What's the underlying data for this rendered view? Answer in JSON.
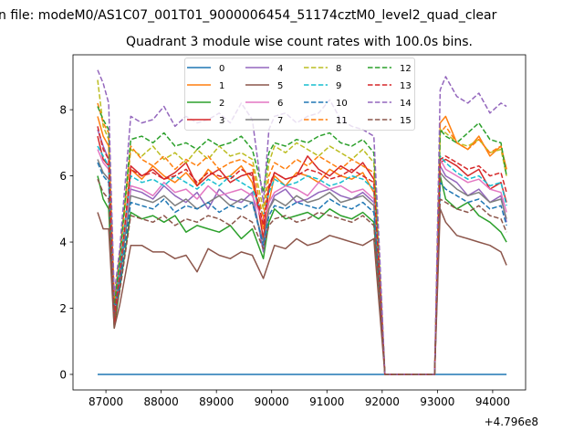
{
  "chart_data": {
    "type": "line",
    "suptitle": "n file: modeM0/AS1C07_001T01_9000006454_51174cztM0_level2_quad_clear",
    "title": "Quadrant 3 module wise count rates with 100.0s bins.",
    "xlabel": "",
    "ylabel": "",
    "x_offset_label": "+4.796e8",
    "xlim": [
      86404,
      94596
    ],
    "ylim": [
      -0.47,
      9.66
    ],
    "xticks": [
      87000,
      88000,
      89000,
      90000,
      91000,
      92000,
      93000,
      94000
    ],
    "yticks": [
      0,
      2,
      4,
      6,
      8
    ],
    "legend_placement": "top-center",
    "x": [
      86850,
      86950,
      87050,
      87150,
      87250,
      87450,
      87650,
      87850,
      88050,
      88250,
      88450,
      88650,
      88850,
      89050,
      89250,
      89450,
      89650,
      89850,
      89950,
      90050,
      90250,
      90450,
      90650,
      90850,
      91050,
      91250,
      91450,
      91650,
      91850,
      91950,
      92050,
      92950,
      93050,
      93150,
      93350,
      93550,
      93750,
      93950,
      94150,
      94250
    ],
    "series": [
      {
        "name": "0",
        "color": "#1f77b4",
        "dashed": false,
        "values": [
          0,
          0,
          0,
          0,
          0,
          0,
          0,
          0,
          0,
          0,
          0,
          0,
          0,
          0,
          0,
          0,
          0,
          0,
          0,
          0,
          0,
          0,
          0,
          0,
          0,
          0,
          0,
          0,
          0,
          0,
          0,
          0,
          0,
          0,
          0,
          0,
          0,
          0,
          0,
          0
        ]
      },
      {
        "name": "1",
        "color": "#ff7f0e",
        "dashed": false,
        "values": [
          7.8,
          7.2,
          6.9,
          1.6,
          3.0,
          6.2,
          5.9,
          6.3,
          6.0,
          5.8,
          6.1,
          5.7,
          6.2,
          5.9,
          6.0,
          6.3,
          5.8,
          4.4,
          5.2,
          6.0,
          5.7,
          6.1,
          6.0,
          5.8,
          6.2,
          6.0,
          5.9,
          6.1,
          5.5,
          3.0,
          0,
          0,
          7.6,
          7.8,
          7.0,
          6.8,
          7.2,
          6.6,
          6.9,
          6.2
        ]
      },
      {
        "name": "2",
        "color": "#2ca02c",
        "dashed": false,
        "values": [
          6.0,
          5.3,
          5.0,
          1.4,
          2.6,
          4.9,
          4.7,
          4.8,
          4.6,
          4.8,
          4.3,
          4.5,
          4.4,
          4.3,
          4.5,
          4.1,
          4.4,
          3.5,
          4.6,
          5.0,
          4.7,
          4.8,
          4.9,
          4.7,
          5.0,
          4.8,
          4.7,
          4.9,
          4.6,
          2.5,
          0,
          0,
          6.0,
          5.3,
          5.0,
          5.2,
          4.8,
          4.6,
          4.3,
          4.0
        ]
      },
      {
        "name": "3",
        "color": "#d62728",
        "dashed": false,
        "values": [
          7.2,
          6.5,
          6.3,
          1.5,
          2.8,
          6.3,
          6.0,
          6.2,
          5.9,
          6.1,
          6.4,
          5.7,
          6.0,
          6.2,
          5.8,
          6.0,
          6.1,
          4.1,
          5.6,
          6.1,
          5.9,
          6.0,
          6.6,
          6.2,
          6.0,
          6.3,
          6.1,
          6.4,
          5.9,
          3.2,
          0,
          0,
          6.4,
          6.5,
          6.3,
          6.0,
          6.2,
          5.6,
          5.8,
          5.2
        ]
      },
      {
        "name": "4",
        "color": "#9467bd",
        "dashed": false,
        "values": [
          7.4,
          6.9,
          6.5,
          1.8,
          2.9,
          5.6,
          5.5,
          5.3,
          5.7,
          5.4,
          5.2,
          5.5,
          5.0,
          5.6,
          5.3,
          5.2,
          5.5,
          3.7,
          5.0,
          5.4,
          5.6,
          5.2,
          5.3,
          5.5,
          5.6,
          5.4,
          5.3,
          5.5,
          5.2,
          2.8,
          0,
          0,
          6.3,
          6.0,
          5.8,
          5.4,
          5.6,
          5.2,
          5.4,
          4.6
        ]
      },
      {
        "name": "5",
        "color": "#8c564b",
        "dashed": false,
        "values": [
          4.9,
          4.4,
          4.4,
          1.4,
          2.1,
          3.9,
          3.9,
          3.7,
          3.7,
          3.5,
          3.6,
          3.1,
          3.8,
          3.6,
          3.5,
          3.7,
          3.6,
          2.9,
          3.4,
          3.9,
          3.8,
          4.1,
          3.9,
          4.0,
          4.2,
          4.1,
          4.0,
          3.9,
          4.1,
          2.0,
          0,
          0,
          5.0,
          4.6,
          4.2,
          4.1,
          4.0,
          3.9,
          3.7,
          3.3
        ]
      },
      {
        "name": "6",
        "color": "#e377c2",
        "dashed": false,
        "values": [
          6.8,
          6.4,
          6.2,
          1.9,
          3.1,
          5.7,
          5.6,
          5.4,
          5.8,
          5.5,
          5.6,
          5.3,
          5.7,
          5.4,
          5.5,
          5.6,
          5.4,
          4.6,
          5.2,
          5.5,
          5.7,
          5.6,
          5.4,
          5.8,
          5.6,
          5.7,
          5.5,
          5.6,
          5.3,
          2.9,
          0,
          0,
          6.5,
          6.2,
          6.0,
          5.8,
          5.9,
          5.6,
          5.5,
          4.9
        ]
      },
      {
        "name": "7",
        "color": "#7f7f7f",
        "dashed": false,
        "values": [
          6.5,
          6.1,
          5.9,
          2.0,
          3.0,
          5.4,
          5.3,
          5.2,
          5.4,
          5.1,
          5.3,
          5.0,
          5.2,
          5.4,
          5.1,
          5.3,
          5.2,
          4.0,
          5.0,
          5.3,
          5.1,
          5.4,
          5.2,
          5.3,
          5.5,
          5.2,
          5.3,
          5.4,
          5.1,
          2.8,
          0,
          0,
          6.1,
          5.9,
          5.6,
          5.4,
          5.5,
          5.2,
          5.3,
          4.7
        ]
      },
      {
        "name": "8",
        "color": "#bcbd22",
        "dashed": true,
        "values": [
          8.9,
          7.5,
          7.1,
          2.3,
          3.4,
          6.8,
          6.6,
          6.9,
          6.5,
          6.7,
          6.4,
          6.8,
          6.5,
          6.9,
          6.6,
          6.7,
          6.5,
          5.0,
          6.4,
          6.9,
          6.7,
          7.0,
          6.8,
          6.6,
          6.9,
          6.7,
          6.5,
          6.8,
          6.4,
          3.4,
          0,
          0,
          7.4,
          7.3,
          7.0,
          6.9,
          7.1,
          6.7,
          6.8,
          6.0
        ]
      },
      {
        "name": "9",
        "color": "#17becf",
        "dashed": true,
        "values": [
          6.9,
          6.6,
          6.3,
          2.1,
          3.2,
          6.0,
          5.8,
          5.9,
          5.7,
          6.0,
          5.8,
          5.6,
          5.9,
          5.7,
          6.0,
          5.8,
          5.6,
          4.8,
          5.5,
          5.9,
          5.7,
          5.8,
          6.0,
          5.9,
          5.7,
          5.8,
          6.0,
          5.9,
          5.6,
          3.0,
          0,
          0,
          6.6,
          6.4,
          6.1,
          5.9,
          6.0,
          5.7,
          5.8,
          5.1
        ]
      },
      {
        "name": "10",
        "color": "#1f77b4",
        "dashed": true,
        "values": [
          6.4,
          6.0,
          5.8,
          1.9,
          2.7,
          5.2,
          5.1,
          5.0,
          5.3,
          4.9,
          5.1,
          5.0,
          5.2,
          4.9,
          5.1,
          5.0,
          5.2,
          3.9,
          4.8,
          5.1,
          5.0,
          5.2,
          5.1,
          5.0,
          5.3,
          5.1,
          5.0,
          5.2,
          4.9,
          2.7,
          0,
          0,
          5.8,
          5.6,
          5.4,
          5.2,
          5.3,
          5.0,
          5.1,
          4.5
        ]
      },
      {
        "name": "11",
        "color": "#ff7f0e",
        "dashed": true,
        "values": [
          8.2,
          7.6,
          7.3,
          2.2,
          3.6,
          6.9,
          6.5,
          6.3,
          6.6,
          6.2,
          6.5,
          6.3,
          6.6,
          6.2,
          6.4,
          6.5,
          6.3,
          4.7,
          6.0,
          6.4,
          6.2,
          6.5,
          6.3,
          6.6,
          6.4,
          6.2,
          6.5,
          6.3,
          6.1,
          3.3,
          0,
          0,
          7.3,
          7.5,
          7.0,
          6.8,
          7.1,
          6.7,
          6.9,
          6.2
        ]
      },
      {
        "name": "12",
        "color": "#2ca02c",
        "dashed": true,
        "values": [
          8.1,
          7.7,
          7.4,
          2.0,
          3.5,
          7.1,
          7.2,
          7.0,
          7.3,
          6.9,
          7.0,
          6.8,
          7.1,
          6.9,
          7.0,
          7.2,
          6.8,
          5.5,
          6.7,
          7.0,
          6.9,
          7.1,
          7.0,
          7.2,
          7.3,
          7.0,
          6.9,
          7.1,
          6.7,
          3.5,
          0,
          0,
          7.4,
          7.2,
          7.0,
          7.3,
          7.6,
          7.1,
          7.0,
          6.0
        ]
      },
      {
        "name": "13",
        "color": "#d62728",
        "dashed": true,
        "values": [
          7.5,
          6.8,
          6.5,
          1.8,
          3.0,
          6.2,
          6.0,
          6.1,
          5.9,
          6.0,
          6.2,
          5.8,
          6.1,
          6.0,
          5.9,
          6.2,
          6.0,
          4.5,
          5.7,
          6.1,
          5.9,
          6.0,
          6.2,
          6.1,
          5.9,
          6.0,
          6.2,
          6.0,
          5.8,
          3.0,
          0,
          0,
          6.5,
          6.6,
          6.4,
          6.2,
          6.3,
          6.0,
          6.1,
          5.5
        ]
      },
      {
        "name": "14",
        "color": "#9467bd",
        "dashed": true,
        "values": [
          9.2,
          8.8,
          8.2,
          2.4,
          3.8,
          7.8,
          7.6,
          7.7,
          8.1,
          7.5,
          7.8,
          7.6,
          7.7,
          7.9,
          7.6,
          8.2,
          7.7,
          5.2,
          7.4,
          7.8,
          7.9,
          7.6,
          7.8,
          7.9,
          8.3,
          7.7,
          7.5,
          7.4,
          7.2,
          3.8,
          0,
          0,
          8.6,
          9.0,
          8.4,
          8.2,
          8.5,
          7.9,
          8.2,
          8.1
        ]
      },
      {
        "name": "15",
        "color": "#8c564b",
        "dashed": true,
        "values": [
          5.9,
          5.5,
          5.3,
          1.7,
          2.5,
          4.8,
          4.7,
          4.6,
          4.8,
          4.5,
          4.7,
          4.6,
          4.8,
          4.7,
          4.5,
          4.8,
          4.6,
          3.8,
          4.5,
          4.7,
          4.8,
          4.6,
          4.7,
          4.9,
          4.8,
          4.7,
          4.6,
          4.8,
          4.5,
          2.5,
          0,
          0,
          5.3,
          5.2,
          5.0,
          4.9,
          5.1,
          4.8,
          4.7,
          4.3
        ]
      }
    ]
  }
}
